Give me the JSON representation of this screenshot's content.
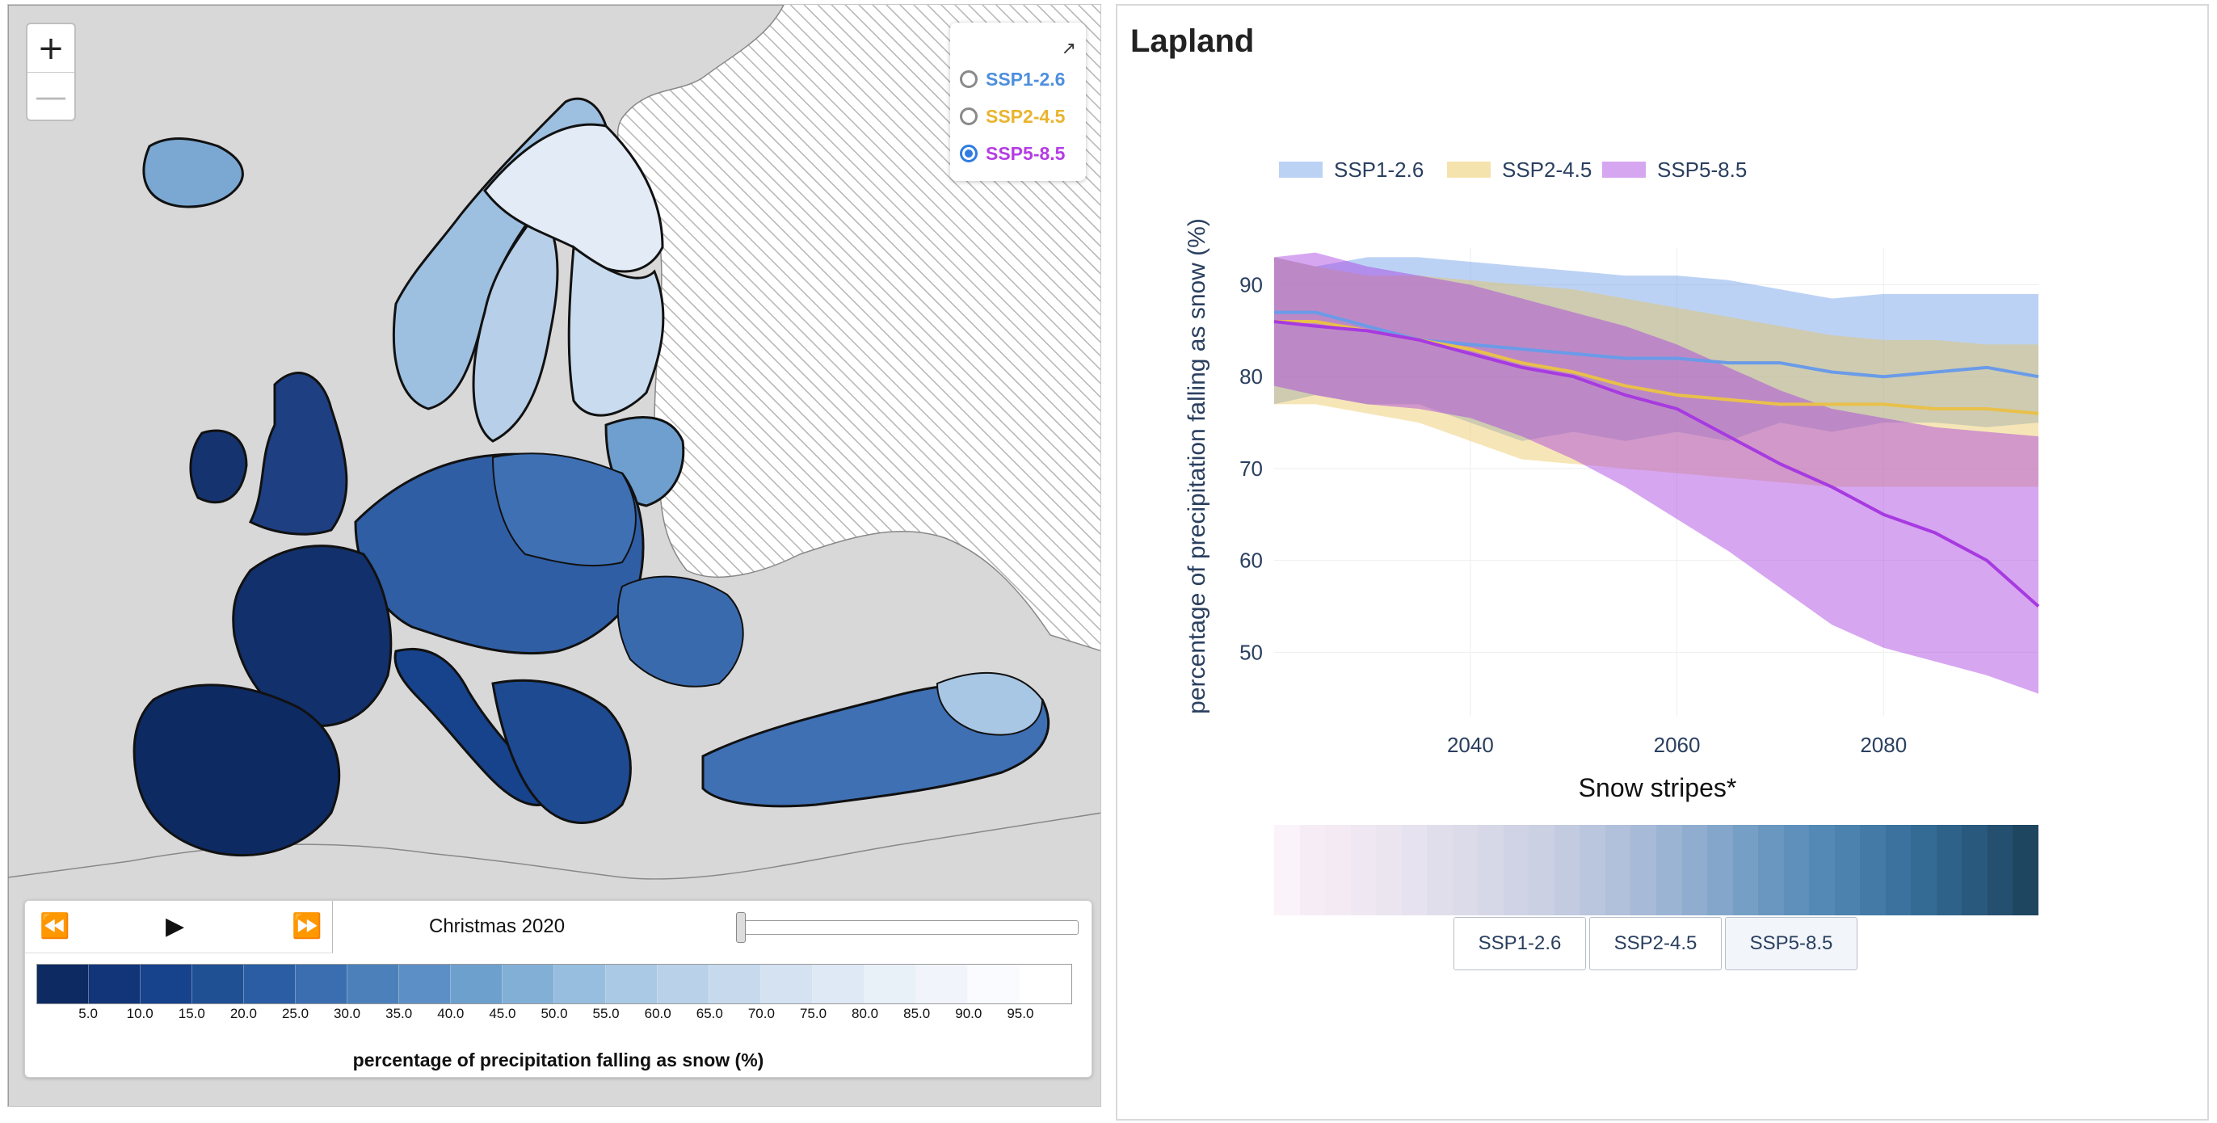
{
  "map": {
    "zoom_in_label": "+",
    "zoom_out_label": "—",
    "expand_icon": "↗",
    "scenarios": [
      {
        "label": "SSP1-2.6",
        "color": "#4e8fdd",
        "selected": false
      },
      {
        "label": "SSP2-4.5",
        "color": "#e9b42e",
        "selected": false
      },
      {
        "label": "SSP5-8.5",
        "color": "#b53de4",
        "selected": true
      }
    ],
    "player": {
      "rewind_icon": "⏪",
      "play_icon": "▶",
      "forward_icon": "⏩"
    },
    "date_label": "Christmas 2020",
    "slider_fraction": 0.0,
    "legend": {
      "title": "percentage of precipitation falling as snow (%)",
      "ticks": [
        "5.0",
        "10.0",
        "15.0",
        "20.0",
        "25.0",
        "30.0",
        "35.0",
        "40.0",
        "45.0",
        "50.0",
        "55.0",
        "60.0",
        "65.0",
        "70.0",
        "75.0",
        "80.0",
        "85.0",
        "90.0",
        "95.0"
      ],
      "colors": [
        "#0d2a63",
        "#12357a",
        "#17428c",
        "#205094",
        "#2a5da3",
        "#3a6eb0",
        "#4c80bb",
        "#5c8fc5",
        "#6ea0ce",
        "#82afd6",
        "#97bedf",
        "#a9c9e4",
        "#b9d2e9",
        "#c7daed",
        "#d4e2f1",
        "#dfe9f5",
        "#e8f0f8",
        "#f1f5fb",
        "#f9fbfe",
        "#ffffff"
      ]
    }
  },
  "panel": {
    "region_title": "Lapland",
    "stripes_title": "Snow stripes*",
    "buttons": [
      "SSP1-2.6",
      "SSP2-4.5",
      "SSP5-8.5"
    ],
    "active_button": 2
  },
  "chart_data": {
    "type": "line",
    "ylabel": "percentage of precipitation falling as snow (%)",
    "xticks": [
      2040,
      2060,
      2080
    ],
    "yticks": [
      50,
      60,
      70,
      80,
      90
    ],
    "xlim": [
      2021,
      2095
    ],
    "ylim": [
      43,
      94
    ],
    "legend_position": "top-left",
    "x": [
      2021,
      2025,
      2030,
      2035,
      2040,
      2045,
      2050,
      2055,
      2060,
      2065,
      2070,
      2075,
      2080,
      2085,
      2090,
      2095
    ],
    "series": [
      {
        "name": "SSP1-2.6",
        "color": "#6a9be8",
        "mean": [
          87,
          87,
          85.5,
          84,
          83.5,
          83,
          82.5,
          82,
          82,
          81.5,
          81.5,
          80.5,
          80,
          80.5,
          81,
          80
        ],
        "upper": [
          93,
          92,
          93,
          93,
          92.5,
          92,
          91.5,
          91,
          91,
          90.5,
          89.5,
          88.5,
          89,
          89,
          89,
          89
        ],
        "lower": [
          77,
          78,
          77,
          77,
          75,
          73,
          74,
          73,
          74,
          73,
          75,
          74,
          75,
          75,
          74.5,
          75
        ]
      },
      {
        "name": "SSP2-4.5",
        "color": "#e9c04a",
        "mean": [
          86,
          86,
          85,
          84,
          83,
          81.5,
          80.5,
          79,
          78,
          77.5,
          77,
          77,
          77,
          76.5,
          76.5,
          76
        ],
        "upper": [
          93,
          92,
          91,
          91,
          90.5,
          90,
          89.5,
          88.5,
          87.5,
          86.5,
          85.5,
          84.5,
          84,
          84,
          83.5,
          83.5
        ],
        "lower": [
          77,
          77,
          76,
          75,
          73,
          71,
          70.5,
          70,
          69.5,
          69,
          68.5,
          68,
          68,
          68,
          68,
          68
        ]
      },
      {
        "name": "SSP5-8.5",
        "color": "#a73ae0",
        "mean": [
          86,
          85.5,
          85,
          84,
          82.5,
          81,
          80,
          78,
          76.5,
          73.5,
          70.5,
          68,
          65,
          63,
          60,
          55
        ],
        "upper": [
          93,
          93.5,
          92,
          91,
          90,
          88.5,
          87,
          85.5,
          83.5,
          81,
          78.5,
          76.5,
          75.5,
          74.5,
          74,
          73.5
        ],
        "lower": [
          79,
          78,
          77,
          76.5,
          75.5,
          73.5,
          71,
          68,
          64.5,
          61,
          57,
          53,
          50.5,
          49,
          47.5,
          45.5
        ]
      }
    ],
    "stripe_colors": [
      "#fbf3fa",
      "#f6ecf6",
      "#f3eaf4",
      "#efe7f2",
      "#ebe5f0",
      "#e6e2ef",
      "#e1deec",
      "#dcdbe9",
      "#d6d7e7",
      "#d0d3e5",
      "#cbd0e3",
      "#c3cbe1",
      "#bac5de",
      "#b1c0db",
      "#a7bad7",
      "#9cb4d3",
      "#90adcf",
      "#83a6ca",
      "#769fc5",
      "#6997c0",
      "#5e90bb",
      "#5489b5",
      "#4b82ae",
      "#437ba6",
      "#3b739e",
      "#346b94",
      "#2e6289",
      "#29597c",
      "#244f6e",
      "#1f4661"
    ]
  }
}
